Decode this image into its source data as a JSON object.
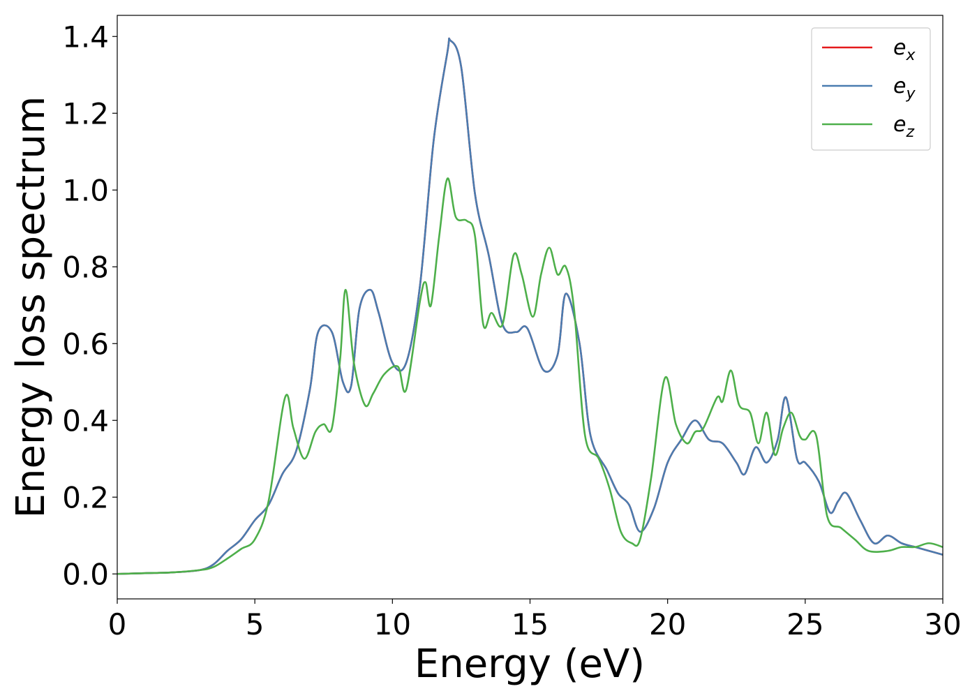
{
  "chart_data": {
    "type": "line",
    "title": "",
    "xlabel": "Energy (eV)",
    "ylabel": "Energy loss spectrum",
    "xlim": [
      0,
      30
    ],
    "ylim": [
      -0.065,
      1.455
    ],
    "xticks": [
      0,
      5,
      10,
      15,
      20,
      25,
      30
    ],
    "xtick_labels": [
      "0",
      "5",
      "10",
      "15",
      "20",
      "25",
      "30"
    ],
    "yticks": [
      0.0,
      0.2,
      0.4,
      0.6,
      0.8,
      1.0,
      1.2,
      1.4
    ],
    "ytick_labels": [
      "0.0",
      "0.2",
      "0.4",
      "0.6",
      "0.8",
      "1.0",
      "1.2",
      "1.4"
    ],
    "grid": false,
    "legend_position": "top-right",
    "series": [
      {
        "name": "e_x",
        "legend_base": "e",
        "legend_sub": "x",
        "color": "#e41a1c",
        "x": [
          0,
          1,
          2,
          3,
          3.5,
          4,
          4.5,
          5,
          5.5,
          6,
          6.5,
          7,
          7.3,
          7.8,
          8.2,
          8.5,
          8.8,
          9.2,
          9.5,
          10,
          10.5,
          11,
          11.5,
          12,
          12.1,
          12.5,
          13,
          13.5,
          14,
          14.5,
          14.9,
          15.5,
          16,
          16.3,
          16.8,
          17.2,
          17.8,
          18.2,
          18.6,
          19,
          19.5,
          20,
          20.5,
          21,
          21.5,
          22,
          22.5,
          22.8,
          23.2,
          23.6,
          24,
          24.3,
          24.7,
          25,
          25.5,
          25.9,
          26.2,
          26.5,
          27,
          27.5,
          28,
          28.5,
          29,
          29.5,
          30
        ],
        "y": [
          0,
          0.002,
          0.004,
          0.01,
          0.025,
          0.06,
          0.09,
          0.14,
          0.18,
          0.26,
          0.32,
          0.48,
          0.63,
          0.63,
          0.5,
          0.49,
          0.69,
          0.74,
          0.68,
          0.55,
          0.55,
          0.75,
          1.13,
          1.36,
          1.39,
          1.32,
          0.99,
          0.83,
          0.65,
          0.63,
          0.64,
          0.53,
          0.57,
          0.73,
          0.6,
          0.36,
          0.27,
          0.21,
          0.18,
          0.11,
          0.17,
          0.29,
          0.35,
          0.4,
          0.35,
          0.34,
          0.29,
          0.26,
          0.33,
          0.29,
          0.35,
          0.46,
          0.3,
          0.29,
          0.24,
          0.16,
          0.19,
          0.21,
          0.14,
          0.08,
          0.1,
          0.08,
          0.07,
          0.06,
          0.05
        ]
      },
      {
        "name": "e_y",
        "legend_base": "e",
        "legend_sub": "y",
        "color": "#4a7cb0",
        "x": [
          0,
          1,
          2,
          3,
          3.5,
          4,
          4.5,
          5,
          5.5,
          6,
          6.5,
          7,
          7.3,
          7.8,
          8.2,
          8.5,
          8.8,
          9.2,
          9.5,
          10,
          10.5,
          11,
          11.5,
          12,
          12.1,
          12.5,
          13,
          13.5,
          14,
          14.5,
          14.9,
          15.5,
          16,
          16.3,
          16.8,
          17.2,
          17.8,
          18.2,
          18.6,
          19,
          19.5,
          20,
          20.5,
          21,
          21.5,
          22,
          22.5,
          22.8,
          23.2,
          23.6,
          24,
          24.3,
          24.7,
          25,
          25.5,
          25.9,
          26.2,
          26.5,
          27,
          27.5,
          28,
          28.5,
          29,
          29.5,
          30
        ],
        "y": [
          0,
          0.002,
          0.004,
          0.01,
          0.025,
          0.06,
          0.09,
          0.14,
          0.18,
          0.26,
          0.32,
          0.48,
          0.63,
          0.63,
          0.5,
          0.49,
          0.69,
          0.74,
          0.68,
          0.55,
          0.55,
          0.75,
          1.13,
          1.36,
          1.39,
          1.32,
          0.99,
          0.83,
          0.65,
          0.63,
          0.64,
          0.53,
          0.57,
          0.73,
          0.6,
          0.36,
          0.27,
          0.21,
          0.18,
          0.11,
          0.17,
          0.29,
          0.35,
          0.4,
          0.35,
          0.34,
          0.29,
          0.26,
          0.33,
          0.29,
          0.35,
          0.46,
          0.3,
          0.29,
          0.24,
          0.16,
          0.19,
          0.21,
          0.14,
          0.08,
          0.1,
          0.08,
          0.07,
          0.06,
          0.05
        ]
      },
      {
        "name": "e_z",
        "legend_base": "e",
        "legend_sub": "z",
        "color": "#4daf4a",
        "x": [
          0,
          1,
          2,
          3,
          3.5,
          4,
          4.5,
          5,
          5.5,
          6.1,
          6.4,
          6.8,
          7.2,
          7.5,
          7.8,
          8.1,
          8.3,
          8.6,
          9,
          9.3,
          9.7,
          10.2,
          10.5,
          11,
          11.2,
          11.4,
          11.7,
          12,
          12.3,
          12.7,
          13,
          13.3,
          13.6,
          14,
          14.4,
          14.7,
          15.1,
          15.4,
          15.7,
          16,
          16.3,
          16.6,
          17,
          17.5,
          17.9,
          18.3,
          18.7,
          19,
          19.4,
          19.9,
          20.3,
          20.7,
          21,
          21.3,
          21.8,
          22,
          22.3,
          22.6,
          23,
          23.3,
          23.6,
          23.9,
          24.2,
          24.5,
          24.8,
          25,
          25.4,
          25.8,
          26.3,
          26.8,
          27.3,
          28,
          28.5,
          29,
          29.5,
          30
        ],
        "y": [
          0,
          0.002,
          0.004,
          0.01,
          0.018,
          0.04,
          0.065,
          0.09,
          0.19,
          0.46,
          0.38,
          0.3,
          0.37,
          0.39,
          0.38,
          0.56,
          0.74,
          0.55,
          0.44,
          0.47,
          0.52,
          0.54,
          0.48,
          0.71,
          0.76,
          0.7,
          0.88,
          1.03,
          0.93,
          0.92,
          0.88,
          0.65,
          0.68,
          0.65,
          0.83,
          0.78,
          0.67,
          0.78,
          0.85,
          0.78,
          0.8,
          0.69,
          0.36,
          0.3,
          0.22,
          0.11,
          0.08,
          0.09,
          0.25,
          0.51,
          0.39,
          0.34,
          0.37,
          0.38,
          0.46,
          0.45,
          0.53,
          0.44,
          0.42,
          0.34,
          0.42,
          0.31,
          0.38,
          0.42,
          0.36,
          0.35,
          0.36,
          0.15,
          0.12,
          0.09,
          0.06,
          0.06,
          0.07,
          0.07,
          0.08,
          0.07
        ]
      }
    ]
  }
}
